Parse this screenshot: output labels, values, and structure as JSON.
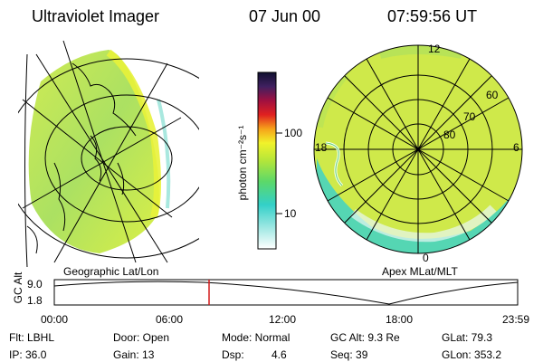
{
  "header": {
    "instrument": "Ultraviolet Imager",
    "date": "07 Jun 00",
    "time": "07:59:56 UT"
  },
  "colorbar": {
    "unit_label": "photon cm⁻²s⁻¹",
    "ticks": [
      "100",
      "10"
    ]
  },
  "polar_plot": {
    "mlt_labels": [
      "12",
      "18",
      "6",
      "0"
    ],
    "lat_labels": [
      "60",
      "70",
      "80"
    ]
  },
  "panel_labels": {
    "left": "Geographic Lat/Lon",
    "right": "Apex MLat/MLT"
  },
  "timeline": {
    "axis_label": "GC Alt",
    "y_ticks": [
      "9.0",
      "1.8"
    ],
    "x_ticks": [
      "00:00",
      "06:00",
      "12:00",
      "18:00",
      "23:59"
    ]
  },
  "info": {
    "flt": "Flt: LBHL",
    "ip": "IP: 36.0",
    "door": "Door: Open",
    "gain": "Gain: 13",
    "mode": "Mode: Normal",
    "dsp": "Dsp:",
    "dsp_val": "4.6",
    "gcalt": "GC Alt: 9.3 Re",
    "seq": "Seq: 39",
    "glat": "GLat:  79.3",
    "glon": "GLon: 353.2"
  },
  "colors": {
    "aurora_low": "#a9e25a",
    "aurora_mid": "#d7ee3a",
    "aurora_cyan": "#3cd3c8",
    "cursor": "#d21c1c"
  }
}
